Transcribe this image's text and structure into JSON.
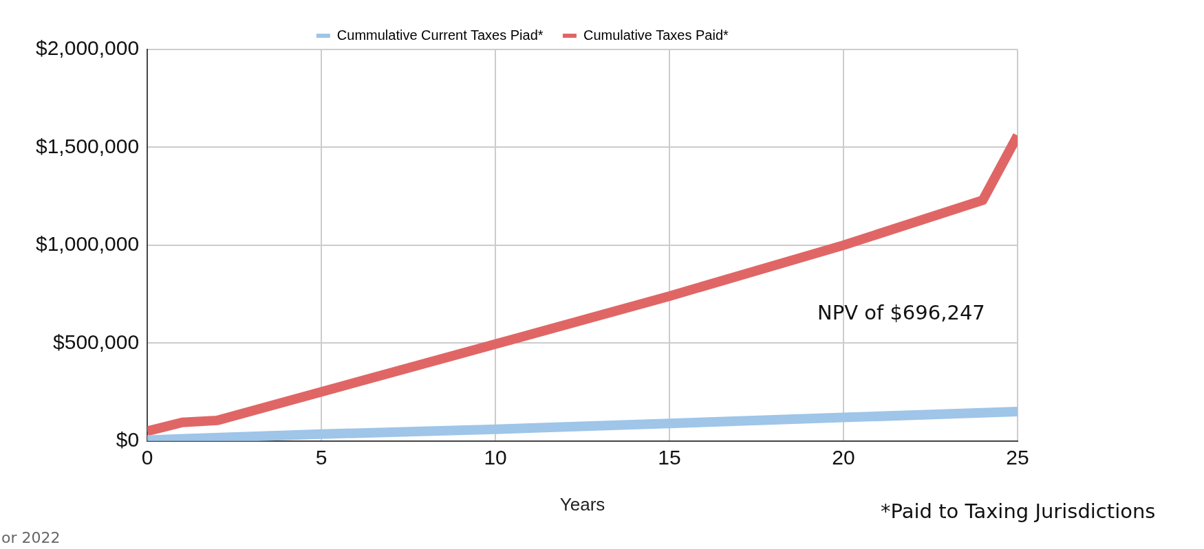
{
  "chart_data": {
    "type": "line",
    "xlabel": "Years",
    "legend": "top",
    "grid": true,
    "marker": "none",
    "line_style": "solid",
    "xlim": [
      0,
      25
    ],
    "xticks": [
      0,
      5,
      10,
      15,
      20,
      25
    ],
    "ylim": [
      0,
      2000000
    ],
    "yticks": [
      {
        "value": 0,
        "label": "$0"
      },
      {
        "value": 500000,
        "label": "$500,000"
      },
      {
        "value": 1000000,
        "label": "$1,000,000"
      },
      {
        "value": 1500000,
        "label": "$1,500,000"
      },
      {
        "value": 2000000,
        "label": "$2,000,000"
      }
    ],
    "series": [
      {
        "name": "Cummulative Current Taxes Piad*",
        "color": "#9fc5e8",
        "x": [
          0,
          5,
          10,
          15,
          20,
          25
        ],
        "values": [
          5000,
          35000,
          60000,
          90000,
          120000,
          150000
        ]
      },
      {
        "name": "Cumulative Taxes Paid*",
        "color": "#e06666",
        "x": [
          0,
          1,
          2,
          10,
          15,
          20,
          24,
          25
        ],
        "values": [
          50000,
          95000,
          105000,
          495000,
          740000,
          1000000,
          1230000,
          1560000
        ]
      }
    ],
    "annotations": [
      "NPV of $696,247",
      "*Paid to Taxing Jurisdictions",
      "or 2022"
    ]
  }
}
